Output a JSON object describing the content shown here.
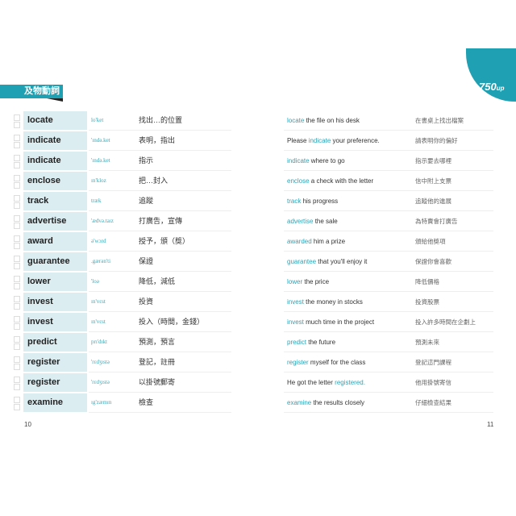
{
  "section_tab": "及物動詞",
  "level_badge": {
    "number": "750",
    "suffix": "up"
  },
  "accent_color": "#1fa0b3",
  "entries": [
    {
      "word": "locate",
      "phonetic": "lo'ket",
      "meaning": "找出…的位置",
      "example": {
        "before": "",
        "highlight": "locate",
        "after": " the file on his desk"
      },
      "translation": "在書桌上找出檔案"
    },
    {
      "word": "indicate",
      "phonetic": "'ɪndə.ket",
      "meaning": "表明，指出",
      "example": {
        "before": "Please ",
        "highlight": "indicate",
        "after": " your preference."
      },
      "translation": "請表明你的偏好"
    },
    {
      "word": "indicate",
      "phonetic": "'ɪndə.ket",
      "meaning": "指示",
      "example": {
        "before": "",
        "highlight": "indicate",
        "after": " where to go"
      },
      "translation": "指示要去哪裡"
    },
    {
      "word": "enclose",
      "phonetic": "ɪn'kloz",
      "meaning": "把…封入",
      "example": {
        "before": "",
        "highlight": "enclose",
        "after": " a check with the letter"
      },
      "translation": "信中附上支票"
    },
    {
      "word": "track",
      "phonetic": "træk",
      "meaning": "追蹤",
      "example": {
        "before": "",
        "highlight": "track",
        "after": " his progress"
      },
      "translation": "追蹤他的進展"
    },
    {
      "word": "advertise",
      "phonetic": "'ædvə.taɪz",
      "meaning": "打廣告，宣傳",
      "example": {
        "before": "",
        "highlight": "advertise",
        "after": " the sale"
      },
      "translation": "為特賣會打廣告"
    },
    {
      "word": "award",
      "phonetic": "ə'wɔrd",
      "meaning": "授予，頒（獎）",
      "example": {
        "before": "",
        "highlight": "awarded",
        "after": " him a prize"
      },
      "translation": "頒給他獎項"
    },
    {
      "word": "guarantee",
      "phonetic": ".gærən'ti",
      "meaning": "保證",
      "example": {
        "before": "",
        "highlight": "guarantee",
        "after": " that you'll enjoy it"
      },
      "translation": "保證你會喜歡"
    },
    {
      "word": "lower",
      "phonetic": "'loə",
      "meaning": "降低，減低",
      "example": {
        "before": "",
        "highlight": "lower",
        "after": " the price"
      },
      "translation": "降低價格"
    },
    {
      "word": "invest",
      "phonetic": "ɪn'vɛst",
      "meaning": "投資",
      "example": {
        "before": "",
        "highlight": "invest",
        "after": " the money in stocks"
      },
      "translation": "投資股票"
    },
    {
      "word": "invest",
      "phonetic": "ɪn'vɛst",
      "meaning": "投入（時間，金錢）",
      "example": {
        "before": "",
        "highlight": "invest",
        "after": " much time in the project"
      },
      "translation": "投入許多時間在企劃上"
    },
    {
      "word": "predict",
      "phonetic": "prɪ'dɪkt",
      "meaning": "預測，預言",
      "example": {
        "before": "",
        "highlight": "predict",
        "after": " the future"
      },
      "translation": "預測未來"
    },
    {
      "word": "register",
      "phonetic": "'rɛdʒɪstə",
      "meaning": "登記，註冊",
      "example": {
        "before": "",
        "highlight": "register",
        "after": " myself for the class"
      },
      "translation": "登記這門課程"
    },
    {
      "word": "register",
      "phonetic": "'rɛdʒɪstə",
      "meaning": "以掛號郵寄",
      "example": {
        "before": "He got the letter ",
        "highlight": "registered.",
        "after": ""
      },
      "translation": "他用掛號寄信"
    },
    {
      "word": "examine",
      "phonetic": "ɪg'zæmɪn",
      "meaning": "檢查",
      "example": {
        "before": "",
        "highlight": "examine",
        "after": " the results closely"
      },
      "translation": "仔細檢查結果"
    }
  ],
  "page_numbers": {
    "left": "10",
    "right": "11"
  }
}
